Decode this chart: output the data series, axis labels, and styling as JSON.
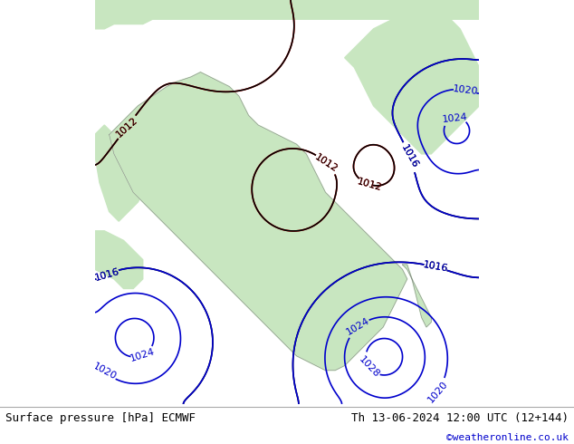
{
  "title_left": "Surface pressure [hPa] ECMWF",
  "title_right": "Th 13-06-2024 12:00 UTC (12+144)",
  "copyright": "©weatheronline.co.uk",
  "bg_color": "#ffffff",
  "land_color": "#c8e6c0",
  "sea_color": "#d0e8f4",
  "gray_color": "#cccccc",
  "contour_low_color": "#ff0000",
  "contour_mid_color": "#000000",
  "contour_high_color": "#0000cc",
  "label_fontsize": 8,
  "bottom_fontsize": 9,
  "copyright_color": "#0000cc",
  "fig_width": 6.34,
  "fig_height": 4.9,
  "dpi": 100,
  "xlim": [
    -20,
    60
  ],
  "ylim": [
    -42,
    42
  ]
}
